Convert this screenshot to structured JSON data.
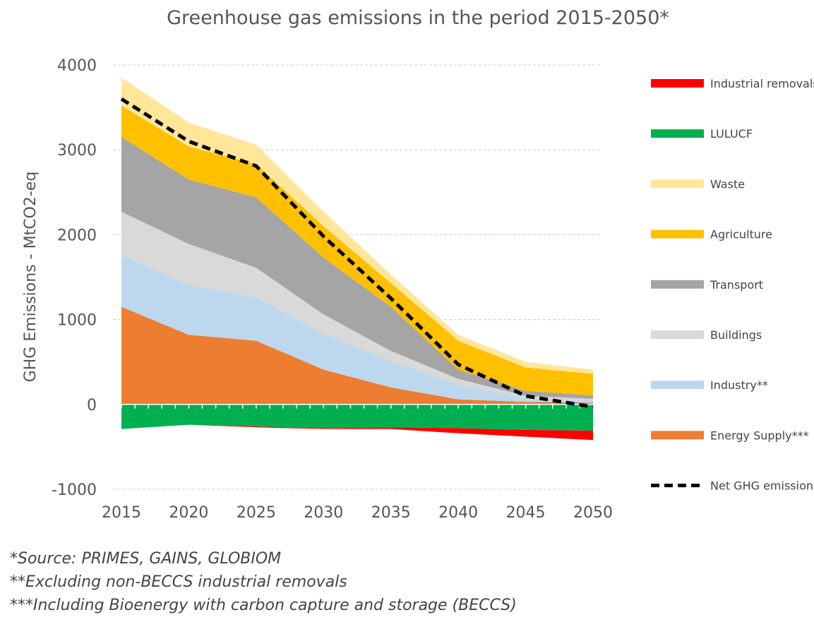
{
  "chart_data": {
    "type": "area",
    "title": "Greenhouse gas emissions in the period 2015-2050*",
    "ylabel": "GHG Emissions - MtCO2-eq",
    "xlabel": "",
    "x": [
      2015,
      2020,
      2025,
      2030,
      2035,
      2040,
      2045,
      2050
    ],
    "xticks": [
      "2015",
      "2020",
      "2025",
      "2030",
      "2035",
      "2040",
      "2045",
      "2050"
    ],
    "yticks": [
      "-1000",
      "0",
      "1000",
      "2000",
      "3000",
      "4000"
    ],
    "ylim": [
      -1000,
      4000
    ],
    "grid": "horizontal dashed",
    "legend_position": "right",
    "positive_series": [
      {
        "name": "Energy Supply***",
        "color": "#ED7D31",
        "values": [
          1150,
          820,
          750,
          410,
          200,
          60,
          30,
          20
        ]
      },
      {
        "name": "Industry**",
        "color": "#BDD7EE",
        "values": [
          610,
          590,
          510,
          420,
          310,
          170,
          45,
          30
        ]
      },
      {
        "name": "Buildings",
        "color": "#D9D9D9",
        "values": [
          510,
          480,
          350,
          230,
          120,
          70,
          25,
          15
        ]
      },
      {
        "name": "Transport",
        "color": "#A5A5A5",
        "values": [
          880,
          760,
          830,
          670,
          520,
          110,
          60,
          40
        ]
      },
      {
        "name": "Agriculture",
        "color": "#FFC000",
        "values": [
          370,
          390,
          390,
          370,
          280,
          340,
          275,
          255
        ]
      },
      {
        "name": "Waste",
        "color": "#FFE699",
        "values": [
          330,
          280,
          230,
          170,
          100,
          70,
          65,
          50
        ]
      }
    ],
    "negative_series": [
      {
        "name": "LULUCF",
        "color": "#00B050",
        "values": [
          -290,
          -240,
          -260,
          -280,
          -270,
          -280,
          -300,
          -310
        ]
      },
      {
        "name": "Industrial removals",
        "color": "#FF0000",
        "values": [
          0,
          0,
          -10,
          -10,
          -20,
          -60,
          -80,
          -110
        ]
      }
    ],
    "net_line": {
      "name": "Net GHG emissions",
      "color": "#000000",
      "style": "dashed",
      "values": [
        3600,
        3100,
        2810,
        1980,
        1250,
        470,
        100,
        -30
      ]
    },
    "legend": [
      {
        "name": "Industrial removals",
        "color": "#FF0000",
        "kind": "box"
      },
      {
        "name": "LULUCF",
        "color": "#00B050",
        "kind": "box"
      },
      {
        "name": "Waste",
        "color": "#FFE699",
        "kind": "box"
      },
      {
        "name": "Agriculture",
        "color": "#FFC000",
        "kind": "box"
      },
      {
        "name": "Transport",
        "color": "#A5A5A5",
        "kind": "box"
      },
      {
        "name": "Buildings",
        "color": "#D9D9D9",
        "kind": "box"
      },
      {
        "name": "Industry**",
        "color": "#BDD7EE",
        "kind": "box"
      },
      {
        "name": "Energy Supply***",
        "color": "#ED7D31",
        "kind": "box"
      },
      {
        "name": "Net GHG emissions",
        "color": "#000000",
        "kind": "dash"
      }
    ],
    "footnotes": [
      "*Source: PRIMES, GAINS, GLOBIOM",
      "**Excluding non-BECCS industrial removals",
      "***Including Bioenergy with carbon capture and storage (BECCS)"
    ]
  }
}
